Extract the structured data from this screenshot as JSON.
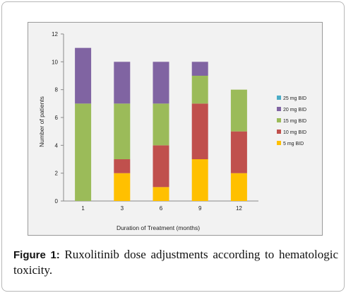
{
  "caption": {
    "label": "Figure 1:",
    "text": "Ruxolitinib dose adjustments according to hematologic toxicity."
  },
  "chart_data": {
    "type": "bar",
    "stacked": true,
    "title": "",
    "xlabel": "Duration of Treatment (months)",
    "ylabel": "Number of patients",
    "ylim": [
      0,
      12
    ],
    "yticks": [
      0,
      2,
      4,
      6,
      8,
      10,
      12
    ],
    "grid": false,
    "legend_position": "right",
    "categories": [
      "1",
      "3",
      "6",
      "9",
      "12"
    ],
    "series": [
      {
        "name": "5 mg BID",
        "color": "#ffc000",
        "values": [
          0,
          2,
          1,
          3,
          2
        ]
      },
      {
        "name": "10 mg BID",
        "color": "#c0504d",
        "values": [
          0,
          1,
          3,
          4,
          3
        ]
      },
      {
        "name": "15 mg BID",
        "color": "#9bbb59",
        "values": [
          7,
          4,
          3,
          2,
          3
        ]
      },
      {
        "name": "20 mg BID",
        "color": "#8064a2",
        "values": [
          4,
          3,
          3,
          1,
          0
        ]
      },
      {
        "name": "25 mg BID",
        "color": "#4bacc6",
        "values": [
          0,
          0,
          0,
          0,
          0
        ]
      }
    ]
  }
}
